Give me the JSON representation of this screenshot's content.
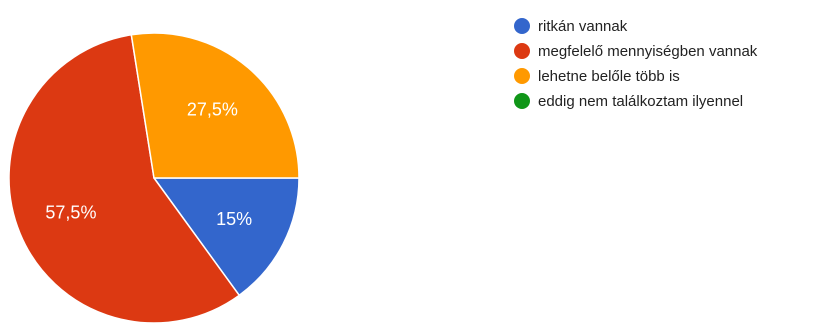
{
  "chart_data": {
    "type": "pie",
    "title": "",
    "start_angle_deg": 90,
    "direction": "counterclockwise-from-right",
    "categories": [
      "ritkán vannak",
      "megfelelő mennyiségben vannak",
      "lehetne belőle több is",
      "eddig nem találkoztam ilyennel"
    ],
    "values": [
      15,
      57.5,
      27.5,
      0
    ],
    "value_labels": [
      "15%",
      "57,5%",
      "27,5%",
      ""
    ],
    "colors": [
      "#3366cc",
      "#dc3912",
      "#ff9900",
      "#109618"
    ],
    "legend": {
      "position": "right",
      "items": [
        {
          "label": "ritkán vannak",
          "color": "#3366cc"
        },
        {
          "label": "megfelelő mennyiségben vannak",
          "color": "#dc3912"
        },
        {
          "label": "lehetne belőle több is",
          "color": "#ff9900"
        },
        {
          "label": "eddig nem találkoztam ilyennel",
          "color": "#109618"
        }
      ]
    }
  }
}
